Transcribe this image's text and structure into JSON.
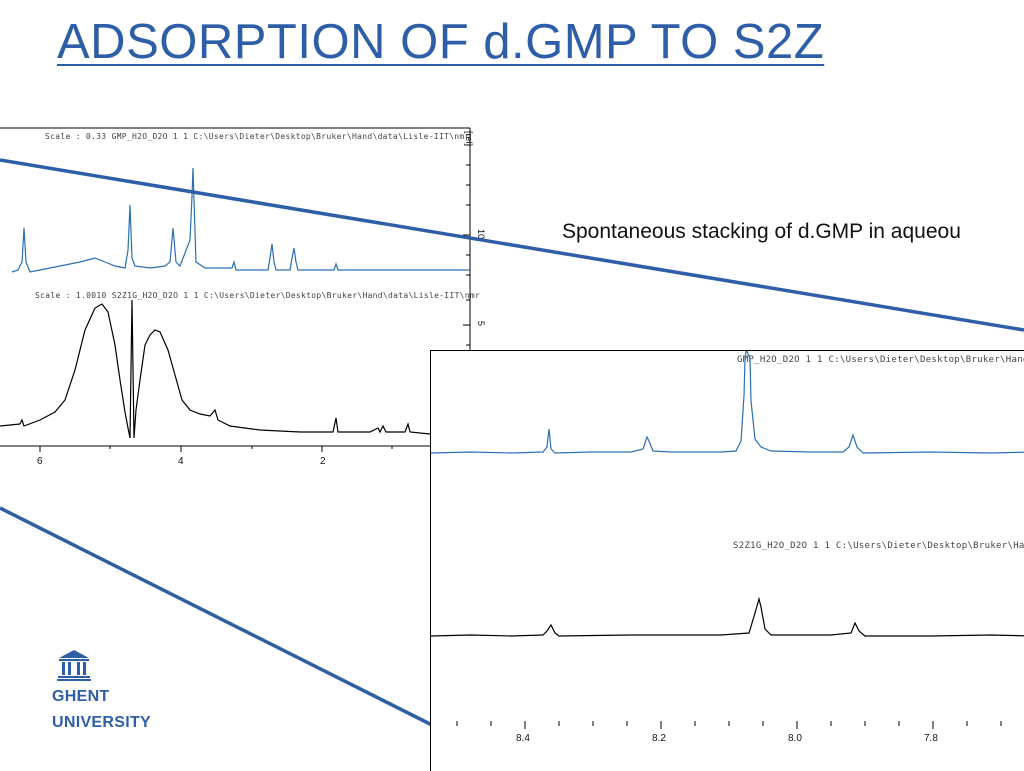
{
  "slide": {
    "title": "ADSORPTION OF d.GMP TO S2Z",
    "caption": "Spontaneous stacking of d.GMP in aqueou"
  },
  "left_spectrum": {
    "header_top": "Scale : 0.33     GMP_H2O_D2O  1  1  C:\\Users\\Dieter\\Desktop\\Bruker\\Hand\\data\\Lisle-IIT\\nmr",
    "header_bottom": "Scale : 1.0010     S2Z1G_H2O_D2O  1  1  C:\\Users\\Dieter\\Desktop\\Bruker\\Hand\\data\\Lisle-IIT\\nmr",
    "axis_unit": "[rel]",
    "right_ticks": [
      "10",
      "5"
    ],
    "x_ticks": [
      "6",
      "4",
      "2"
    ]
  },
  "inset_spectrum": {
    "header_top": "GMP_H2O_D2O  1  1  C:\\Users\\Dieter\\Desktop\\Bruker\\Hand",
    "header_bottom": "S2Z1G_H2O_D2O  1  1  C:\\Users\\Dieter\\Desktop\\Bruker\\Hand",
    "x_ticks": [
      "8.4",
      "8.2",
      "8.0",
      "7.8"
    ]
  },
  "logo": {
    "line1": "GHENT",
    "line2": "UNIVERSITY"
  },
  "colors": {
    "accent": "#2f5ea8",
    "spectrum_blue": "#2a6fb5",
    "spectrum_black": "#000000"
  }
}
